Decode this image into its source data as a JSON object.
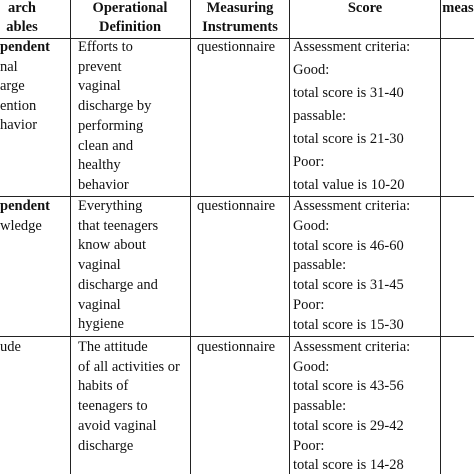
{
  "table": {
    "header": [
      [
        "arch",
        "ables"
      ],
      [
        "Operational",
        "Definition"
      ],
      [
        "Measuring",
        "Instruments"
      ],
      [
        "Score"
      ],
      [
        "meas"
      ]
    ],
    "rows": [
      [
        [
          "pendent",
          "nal",
          "arge",
          "ention",
          "havior"
        ],
        [
          "Efforts to",
          "prevent",
          "vaginal",
          "discharge by",
          "performing",
          "clean and",
          "healthy",
          "behavior"
        ],
        [
          "questionnaire"
        ],
        [
          "Assessment criteria:",
          "Good:",
          "total score is 31-40",
          "passable:",
          "total score is 21-30",
          "Poor:",
          "total value is 10-20"
        ]
      ],
      [
        [
          "pendent",
          "wledge"
        ],
        [
          "Everything",
          "that teenagers",
          "know about",
          "vaginal",
          "discharge and",
          "vaginal",
          "hygiene"
        ],
        [
          "questionnaire"
        ],
        [
          "Assessment criteria:",
          "Good:",
          "total score is 46-60",
          "passable:",
          "total score is 31-45",
          "Poor:",
          "total score is 15-30"
        ]
      ],
      [
        [
          "ude"
        ],
        [
          "The attitude",
          "of all activities or",
          "habits of",
          "teenagers to",
          "avoid vaginal",
          "discharge"
        ],
        [
          "questionnaire"
        ],
        [
          "Assessment criteria:",
          "Good:",
          "total score is 43-56",
          "passable:",
          "total score is 29-42",
          "Poor:",
          "total score is 14-28"
        ]
      ]
    ]
  }
}
